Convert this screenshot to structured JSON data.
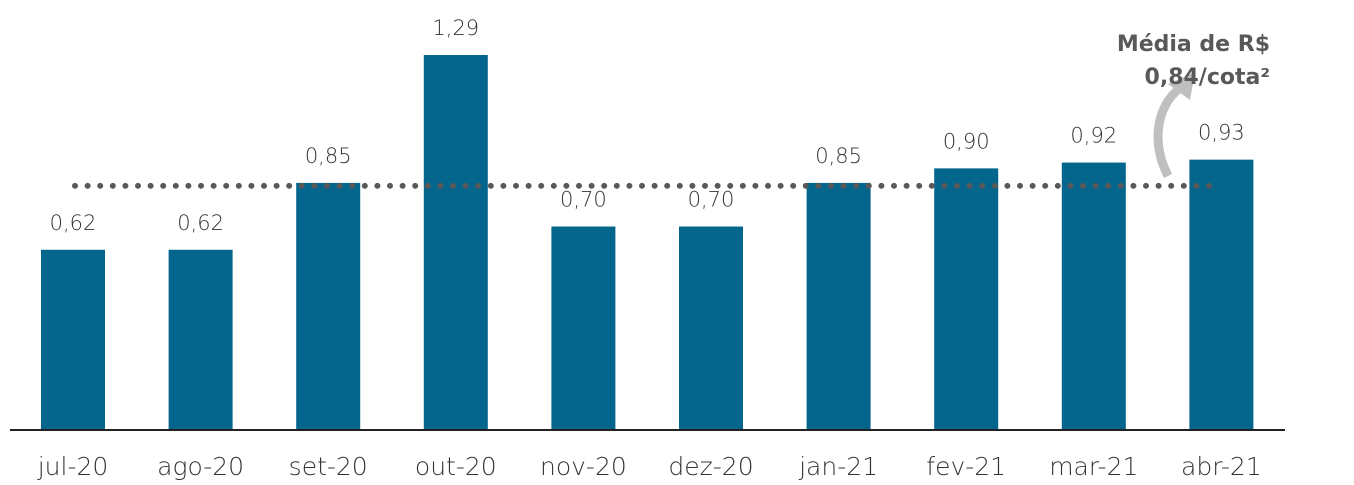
{
  "chart_data": {
    "type": "bar",
    "categories": [
      "jul-20",
      "ago-20",
      "set-20",
      "out-20",
      "nov-20",
      "dez-20",
      "jan-21",
      "fev-21",
      "mar-21",
      "abr-21"
    ],
    "values": [
      0.62,
      0.62,
      0.85,
      1.29,
      0.7,
      0.7,
      0.85,
      0.9,
      0.92,
      0.93
    ],
    "value_labels": [
      "0,62",
      "0,62",
      "0,85",
      "1,29",
      "0,70",
      "0,70",
      "0,85",
      "0,90",
      "0,92",
      "0,93"
    ],
    "color": "#05668d",
    "average": 0.84,
    "annotation": [
      "Média de R$",
      "0,84/cota²"
    ]
  }
}
